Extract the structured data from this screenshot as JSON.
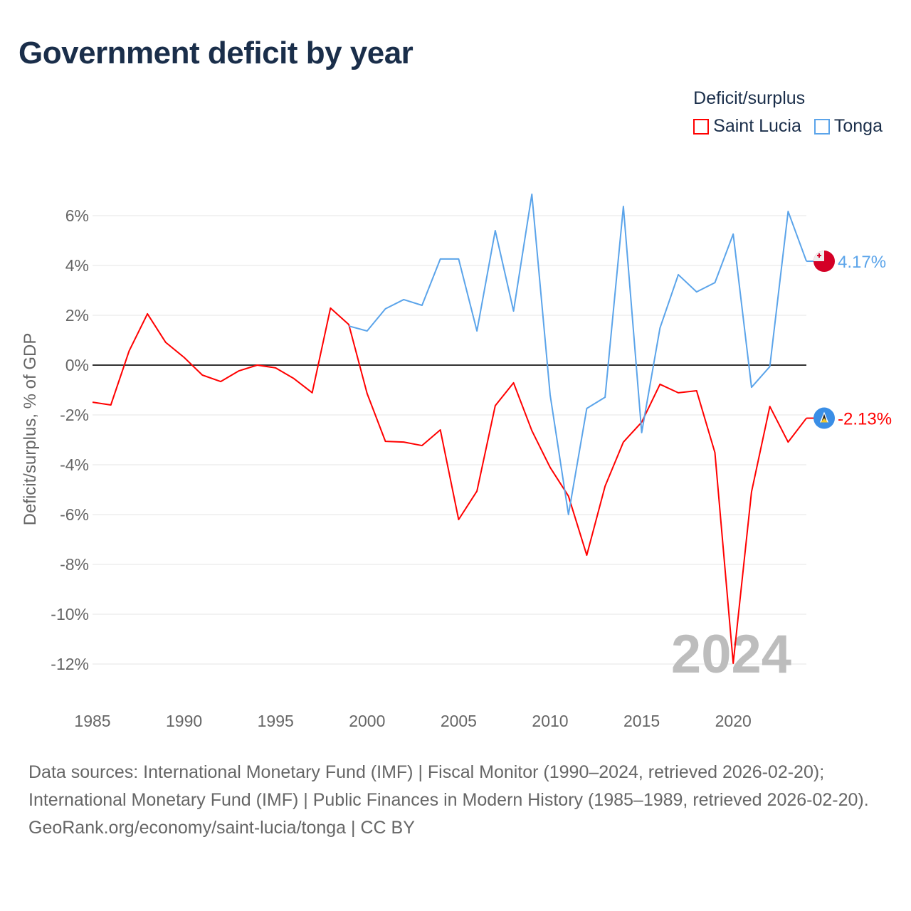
{
  "title": "Government deficit by year",
  "legend": {
    "title": "Deficit/surplus",
    "items": [
      {
        "label": "Saint Lucia",
        "color": "#ff0000"
      },
      {
        "label": "Tonga",
        "color": "#5ba4ea"
      }
    ]
  },
  "chart_data": {
    "type": "line",
    "title": "Government deficit by year",
    "ylabel": "Deficit/surplus, % of GDP",
    "xlabel": "",
    "xlim": [
      1985,
      2024
    ],
    "ylim": [
      -13,
      7.5
    ],
    "x_ticks": [
      1985,
      1990,
      1995,
      2000,
      2005,
      2010,
      2015,
      2020
    ],
    "x_tick_labels": [
      "1985",
      "1990",
      "1995",
      "2000",
      "2005",
      "2010",
      "2015",
      "2020"
    ],
    "y_ticks": [
      6,
      4,
      2,
      0,
      -2,
      -4,
      -6,
      -8,
      -10,
      -12
    ],
    "y_tick_labels": [
      "6%",
      "4%",
      "2%",
      "0%",
      "-2%",
      "-4%",
      "-6%",
      "-8%",
      "-10%",
      "-12%"
    ],
    "grid": true,
    "year_watermark": "2024",
    "series": [
      {
        "name": "Saint Lucia",
        "color": "#ff0000",
        "end_label": "-2.13%",
        "flag": "saint-lucia-flag",
        "x": [
          1985,
          1986,
          1987,
          1988,
          1989,
          1990,
          1991,
          1992,
          1993,
          1994,
          1995,
          1996,
          1997,
          1998,
          1999,
          2000,
          2001,
          2002,
          2003,
          2004,
          2005,
          2006,
          2007,
          2008,
          2009,
          2010,
          2011,
          2012,
          2013,
          2014,
          2015,
          2016,
          2017,
          2018,
          2019,
          2020,
          2021,
          2022,
          2023,
          2024
        ],
        "values": [
          -1.49,
          -1.6,
          0.57,
          2.06,
          0.91,
          0.31,
          -0.4,
          -0.66,
          -0.23,
          0,
          -0.11,
          -0.54,
          -1.11,
          2.29,
          1.63,
          -1.14,
          -3.06,
          -3.09,
          -3.23,
          -2.6,
          -6.2,
          -5.06,
          -1.63,
          -0.71,
          -2.63,
          -4.11,
          -5.26,
          -7.63,
          -4.86,
          -3.09,
          -2.29,
          -0.77,
          -1.11,
          -1.03,
          -3.51,
          -11.97,
          -5.09,
          -1.66,
          -3.09,
          -2.13
        ]
      },
      {
        "name": "Tonga",
        "color": "#5ba4ea",
        "end_label": "4.17%",
        "flag": "tonga-flag",
        "x": [
          1999,
          2000,
          2001,
          2002,
          2003,
          2004,
          2005,
          2006,
          2007,
          2008,
          2009,
          2010,
          2011,
          2012,
          2013,
          2014,
          2015,
          2016,
          2017,
          2018,
          2019,
          2020,
          2021,
          2022,
          2023,
          2024
        ],
        "values": [
          1.57,
          1.37,
          2.26,
          2.63,
          2.4,
          4.26,
          4.26,
          1.37,
          5.4,
          2.17,
          6.86,
          -1.2,
          -6.0,
          -1.74,
          -1.29,
          6.37,
          -2.71,
          1.49,
          3.63,
          2.94,
          3.31,
          5.26,
          -0.89,
          -0.06,
          6.17,
          4.17
        ]
      }
    ]
  },
  "footer": {
    "sources": "Data sources: International Monetary Fund (IMF) | Fiscal Monitor (1990–2024, retrieved 2026-02-20); International Monetary Fund (IMF) | Public Finances in Modern History (1985–1989, retrieved 2026-02-20).",
    "credit": "GeoRank.org/economy/saint-lucia/tonga | CC BY"
  }
}
